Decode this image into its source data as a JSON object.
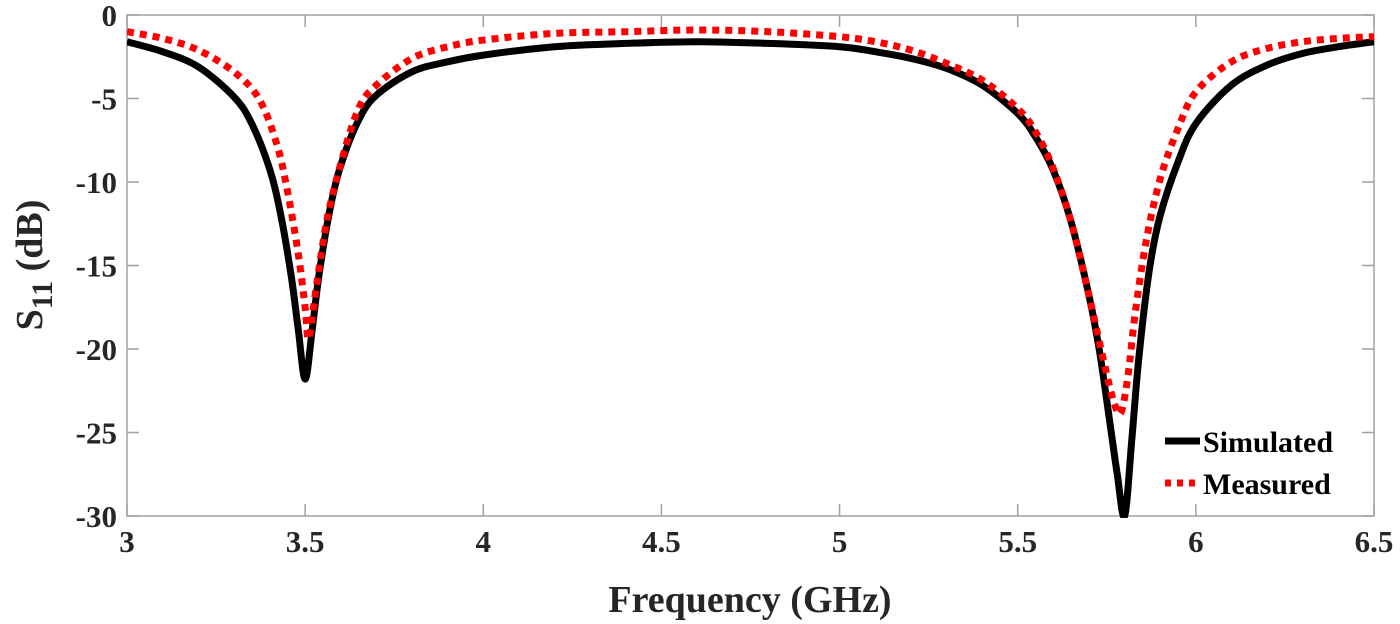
{
  "chart_data": {
    "type": "line",
    "title": "",
    "xlabel": "Frequency (GHz)",
    "ylabel": "S11 (dB)",
    "ylabel_main": "S",
    "ylabel_sub": "11",
    "ylabel_unit": " (dB)",
    "xlim": [
      3,
      6.5
    ],
    "ylim": [
      -30,
      0
    ],
    "xticks": [
      3,
      3.5,
      4,
      4.5,
      5,
      5.5,
      6,
      6.5
    ],
    "xtick_labels": [
      "3",
      "3.5",
      "4",
      "4.5",
      "5",
      "5.5",
      "6",
      "6.5"
    ],
    "yticks": [
      0,
      -5,
      -10,
      -15,
      -20,
      -25,
      -30
    ],
    "ytick_labels": [
      "0",
      "-5",
      "-10",
      "-15",
      "-20",
      "-25",
      "-30"
    ],
    "grid": false,
    "legend_position": "lower right",
    "series": [
      {
        "name": "Simulated",
        "color": "#000000",
        "style": "solid",
        "x": [
          3.0,
          3.1,
          3.2,
          3.3,
          3.35,
          3.4,
          3.43,
          3.46,
          3.48,
          3.5,
          3.52,
          3.54,
          3.57,
          3.6,
          3.65,
          3.7,
          3.8,
          3.9,
          4.0,
          4.2,
          4.4,
          4.6,
          4.8,
          5.0,
          5.1,
          5.2,
          5.3,
          5.4,
          5.5,
          5.55,
          5.6,
          5.65,
          5.7,
          5.73,
          5.76,
          5.78,
          5.8,
          5.82,
          5.84,
          5.87,
          5.9,
          5.95,
          6.0,
          6.1,
          6.2,
          6.3,
          6.4,
          6.5
        ],
        "y": [
          -1.6,
          -2.2,
          -3.1,
          -4.9,
          -6.5,
          -9.2,
          -11.8,
          -15.5,
          -18.7,
          -21.8,
          -18.8,
          -15.4,
          -11.6,
          -9.0,
          -6.3,
          -4.8,
          -3.4,
          -2.8,
          -2.4,
          -1.9,
          -1.7,
          -1.6,
          -1.7,
          -1.9,
          -2.2,
          -2.6,
          -3.2,
          -4.2,
          -5.9,
          -7.3,
          -9.3,
          -12.4,
          -16.8,
          -20.2,
          -24.6,
          -27.6,
          -30.0,
          -25.5,
          -20.5,
          -15.2,
          -12.0,
          -8.8,
          -6.5,
          -4.2,
          -3.0,
          -2.3,
          -1.9,
          -1.6
        ]
      },
      {
        "name": "Measured",
        "color": "#ff0000",
        "style": "dotted",
        "x": [
          3.0,
          3.1,
          3.2,
          3.3,
          3.37,
          3.42,
          3.45,
          3.48,
          3.5,
          3.51,
          3.53,
          3.56,
          3.6,
          3.65,
          3.7,
          3.8,
          3.9,
          4.0,
          4.2,
          4.4,
          4.6,
          4.8,
          5.0,
          5.1,
          5.2,
          5.3,
          5.4,
          5.5,
          5.55,
          5.6,
          5.65,
          5.7,
          5.74,
          5.77,
          5.79,
          5.81,
          5.83,
          5.86,
          5.9,
          5.95,
          6.0,
          6.1,
          6.2,
          6.3,
          6.4,
          6.5
        ],
        "y": [
          -1.0,
          -1.4,
          -2.1,
          -3.4,
          -5.0,
          -7.7,
          -10.5,
          -14.2,
          -17.5,
          -19.4,
          -16.5,
          -12.4,
          -8.9,
          -5.6,
          -4.2,
          -2.6,
          -1.9,
          -1.5,
          -1.1,
          -1.0,
          -0.9,
          -1.0,
          -1.3,
          -1.6,
          -2.1,
          -2.9,
          -3.9,
          -5.6,
          -7.0,
          -9.2,
          -12.4,
          -16.8,
          -20.6,
          -23.2,
          -23.8,
          -21.5,
          -17.8,
          -13.6,
          -9.8,
          -6.8,
          -4.6,
          -2.8,
          -2.0,
          -1.6,
          -1.4,
          -1.3
        ]
      }
    ]
  },
  "legend": {
    "items": [
      {
        "label": "Simulated",
        "color": "#000000",
        "style": "solid"
      },
      {
        "label": "Measured",
        "color": "#ff0000",
        "style": "dotted"
      }
    ]
  },
  "colors": {
    "axis": "#a0a0a0",
    "text": "#262626",
    "simulated": "#000000",
    "measured": "#ff0000"
  }
}
